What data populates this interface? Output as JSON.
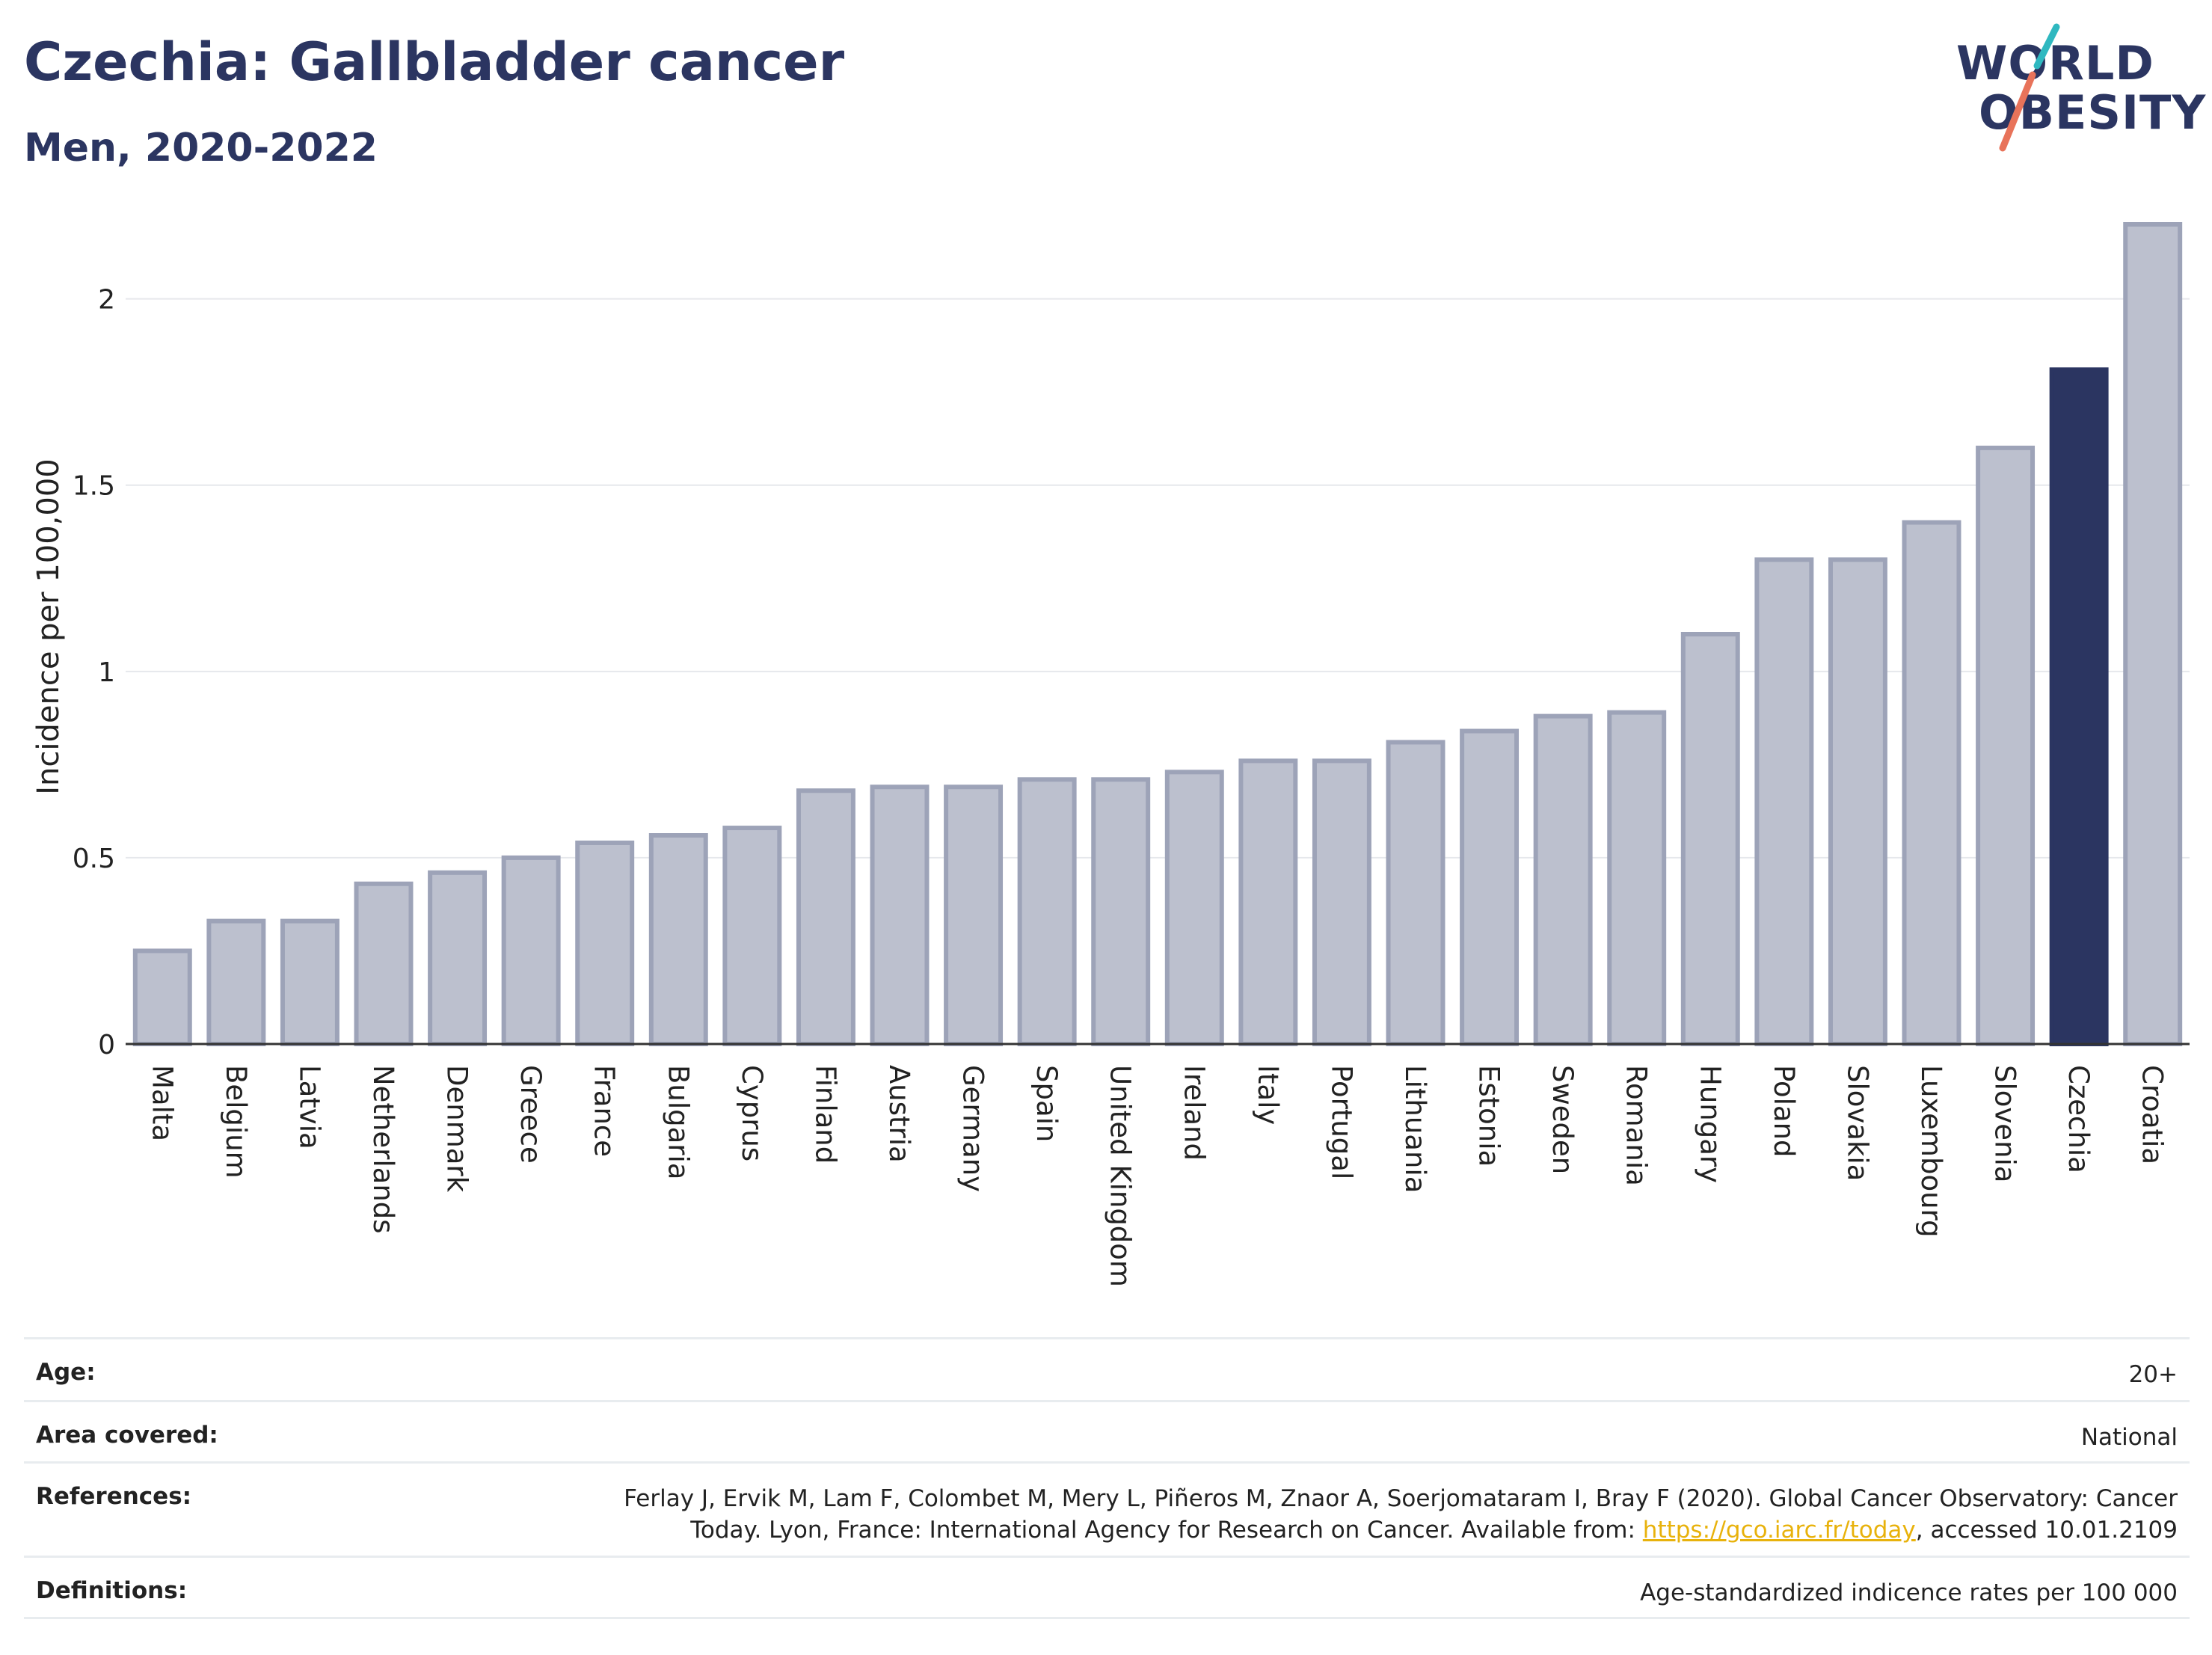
{
  "header": {
    "title": "Czechia: Gallbladder cancer",
    "subtitle": "Men, 2020-2022"
  },
  "logo": {
    "line1": "WORLD",
    "line2": "OBESITY",
    "colors": {
      "navy": "#2b3561",
      "teal": "#2fb8c0",
      "coral": "#e8735a"
    }
  },
  "colors": {
    "bar": "#bcc0ce",
    "bar_border": "#9da3b8",
    "highlight": "#2b3561",
    "grid": "#e6e8ec",
    "axis": "#333333"
  },
  "chart_data": {
    "type": "bar",
    "categories": [
      "Malta",
      "Belgium",
      "Latvia",
      "Netherlands",
      "Denmark",
      "Greece",
      "France",
      "Bulgaria",
      "Cyprus",
      "Finland",
      "Austria",
      "Germany",
      "Spain",
      "United Kingdom",
      "Ireland",
      "Italy",
      "Portugal",
      "Lithuania",
      "Estonia",
      "Sweden",
      "Romania",
      "Hungary",
      "Poland",
      "Slovakia",
      "Luxembourg",
      "Slovenia",
      "Czechia",
      "Croatia"
    ],
    "values": [
      0.25,
      0.33,
      0.33,
      0.43,
      0.46,
      0.5,
      0.54,
      0.56,
      0.58,
      0.68,
      0.69,
      0.69,
      0.71,
      0.71,
      0.73,
      0.76,
      0.76,
      0.81,
      0.84,
      0.88,
      0.89,
      1.1,
      1.3,
      1.3,
      1.4,
      1.6,
      1.81,
      2.2
    ],
    "highlight": "Czechia",
    "ylabel": "Incidence per 100,000",
    "xlabel": "",
    "ylim": [
      0,
      2.2
    ],
    "yticks": [
      0,
      0.5,
      1,
      1.5,
      2
    ],
    "ytick_labels": [
      "0",
      "0.5",
      "1",
      "1.5",
      "2"
    ],
    "grid": true
  },
  "info": {
    "age": {
      "label": "Age:",
      "value": "20+"
    },
    "area": {
      "label": "Area covered:",
      "value": "National"
    },
    "references": {
      "label": "References:",
      "line1": "Ferlay J, Ervik M, Lam F, Colombet M, Mery L, Piñeros M, Znaor A, Soerjomataram I, Bray F (2020). Global Cancer Observatory: Cancer",
      "line2_pre": "Today. Lyon, France: International Agency for Research on Cancer. Available from: ",
      "link": "https://gco.iarc.fr/today",
      "line2_post": ", accessed 10.01.2109"
    },
    "definitions": {
      "label": "Definitions:",
      "value": "Age-standardized indicence rates per 100 000"
    }
  }
}
